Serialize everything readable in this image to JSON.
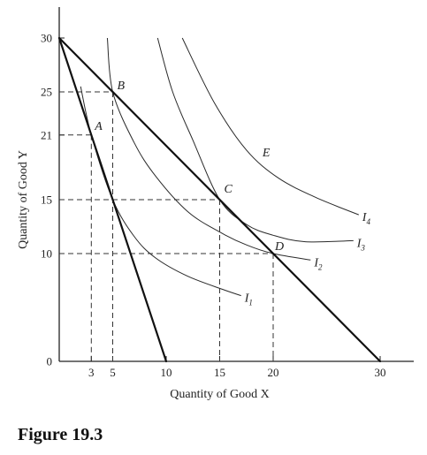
{
  "chart_data": {
    "type": "line",
    "xlabel": "Quantity of Good X",
    "ylabel": "Quantity of Good Y",
    "xlim": [
      0,
      32
    ],
    "ylim": [
      0,
      30
    ],
    "x_ticks": [
      3,
      5,
      10,
      15,
      20,
      30
    ],
    "y_ticks": [
      0,
      10,
      15,
      21,
      25,
      30
    ],
    "budget_lines": [
      {
        "points": [
          [
            0,
            30
          ],
          [
            10,
            0
          ]
        ]
      },
      {
        "points": [
          [
            0,
            30
          ],
          [
            30,
            0
          ]
        ]
      }
    ],
    "indifference_curves": [
      {
        "name": "I",
        "subscript": "1",
        "points": [
          [
            2,
            25.5
          ],
          [
            3,
            21
          ],
          [
            5,
            15
          ],
          [
            7,
            11.6
          ],
          [
            9,
            9.6
          ],
          [
            12,
            7.9
          ],
          [
            15.5,
            6.6
          ],
          [
            17,
            6.1
          ]
        ]
      },
      {
        "name": "I",
        "subscript": "2",
        "points": [
          [
            4.5,
            30
          ],
          [
            5,
            25
          ],
          [
            7,
            20.3
          ],
          [
            9,
            17.2
          ],
          [
            12,
            13.9
          ],
          [
            15,
            12
          ],
          [
            17.5,
            10.8
          ],
          [
            20,
            10
          ],
          [
            23.5,
            9.4
          ]
        ]
      },
      {
        "name": "I",
        "subscript": "3",
        "points": [
          [
            9.2,
            30
          ],
          [
            10.6,
            25
          ],
          [
            12.5,
            20.5
          ],
          [
            15,
            15
          ],
          [
            17.5,
            12.7
          ],
          [
            20,
            11.7
          ],
          [
            23,
            11.1
          ],
          [
            27.5,
            11.2
          ]
        ]
      },
      {
        "name": "I",
        "subscript": "4",
        "points": [
          [
            11.5,
            30
          ],
          [
            14.5,
            24
          ],
          [
            17.5,
            19.6
          ],
          [
            20.5,
            17
          ],
          [
            24,
            15.2
          ],
          [
            28,
            13.6
          ]
        ]
      }
    ],
    "points": [
      {
        "label": "A",
        "x": 3,
        "y": 21
      },
      {
        "label": "B",
        "x": 5,
        "y": 25
      },
      {
        "label": "C",
        "x": 15,
        "y": 15
      },
      {
        "label": "D",
        "x": 20,
        "y": 10
      }
    ],
    "annotations": [
      {
        "label": "E",
        "x": 19,
        "y": 19
      }
    ],
    "grid": false
  },
  "caption": "Figure 19.3"
}
